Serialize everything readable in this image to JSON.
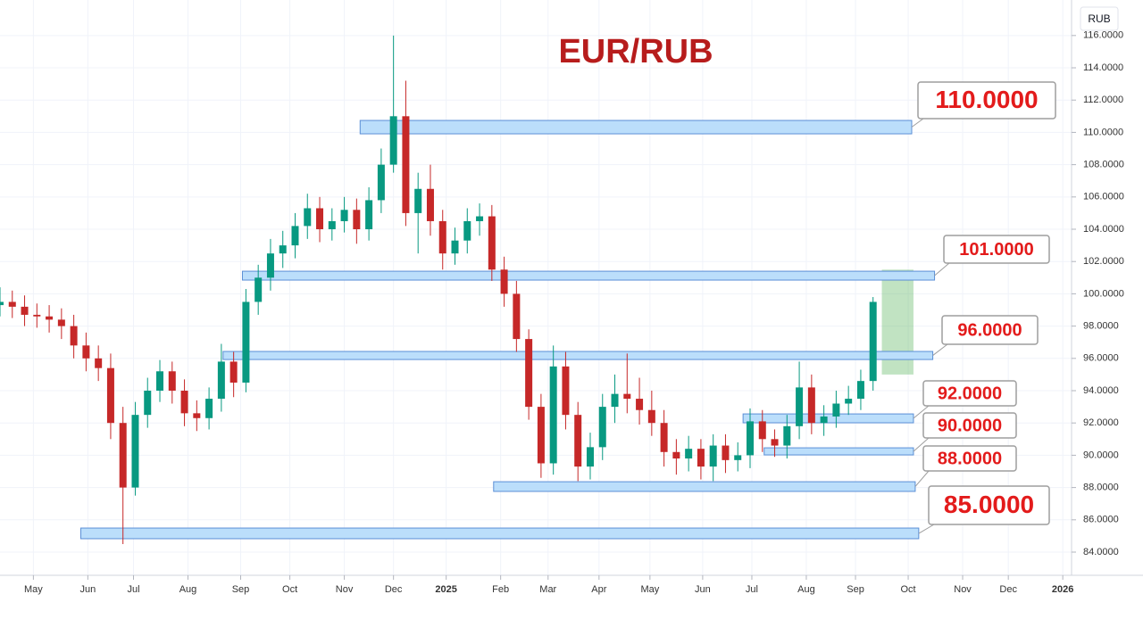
{
  "chart_data": {
    "type": "candlestick",
    "title": "EUR/RUB",
    "currency": "RUB",
    "up_color": "#089981",
    "down_color": "#c62828",
    "grid": true,
    "xlim": [
      0,
      610
    ],
    "ylim": [
      82.84,
      118.2
    ],
    "xticks": [
      {
        "value": 19,
        "label": "May"
      },
      {
        "value": 50,
        "label": "Jun"
      },
      {
        "value": 76,
        "label": "Jul"
      },
      {
        "value": 107,
        "label": "Aug"
      },
      {
        "value": 137,
        "label": "Sep"
      },
      {
        "value": 165,
        "label": "Oct"
      },
      {
        "value": 196,
        "label": "Nov"
      },
      {
        "value": 224,
        "label": "Dec"
      },
      {
        "value": 254,
        "label": "2025"
      },
      {
        "value": 285,
        "label": "Feb"
      },
      {
        "value": 312,
        "label": "Mar"
      },
      {
        "value": 341,
        "label": "Apr"
      },
      {
        "value": 370,
        "label": "May"
      },
      {
        "value": 400,
        "label": "Jun"
      },
      {
        "value": 428,
        "label": "Jul"
      },
      {
        "value": 459,
        "label": "Aug"
      },
      {
        "value": 487,
        "label": "Sep"
      },
      {
        "value": 517,
        "label": "Oct"
      },
      {
        "value": 548,
        "label": "Nov"
      },
      {
        "value": 574,
        "label": "Dec"
      },
      {
        "value": 605,
        "label": "2026"
      }
    ],
    "yticks": [
      {
        "value": 84,
        "label": "84.0000"
      },
      {
        "value": 86,
        "label": "86.0000"
      },
      {
        "value": 88,
        "label": "88.0000"
      },
      {
        "value": 90,
        "label": "90.0000"
      },
      {
        "value": 92,
        "label": "92.0000"
      },
      {
        "value": 94,
        "label": "94.0000"
      },
      {
        "value": 96,
        "label": "96.0000"
      },
      {
        "value": 98,
        "label": "98.0000"
      },
      {
        "value": 100,
        "label": "100.0000"
      },
      {
        "value": 102,
        "label": "102.0000"
      },
      {
        "value": 104,
        "label": "104.0000"
      },
      {
        "value": 106,
        "label": "106.0000"
      },
      {
        "value": 108,
        "label": "108.0000"
      },
      {
        "value": 110,
        "label": "110.0000"
      },
      {
        "value": 112,
        "label": "112.0000"
      },
      {
        "value": 114,
        "label": "114.0000"
      },
      {
        "value": 116,
        "label": "116.0000"
      }
    ],
    "x": [
      0,
      7,
      14,
      21,
      28,
      35,
      42,
      49,
      56,
      63,
      70,
      77,
      84,
      91,
      98,
      105,
      112,
      119,
      126,
      133,
      140,
      147,
      154,
      161,
      168,
      175,
      182,
      189,
      196,
      203,
      210,
      217,
      224,
      231,
      238,
      245,
      252,
      259,
      266,
      273,
      280,
      287,
      294,
      301,
      308,
      315,
      322,
      329,
      336,
      343,
      350,
      357,
      364,
      371,
      378,
      385,
      392,
      399,
      406,
      413,
      420,
      427,
      434,
      441,
      448,
      455,
      462,
      469,
      476,
      483,
      490,
      497
    ],
    "open": [
      99.3,
      99.5,
      99.2,
      98.7,
      98.6,
      98.4,
      98.0,
      96.8,
      96.0,
      95.4,
      92.0,
      88.0,
      92.5,
      94.0,
      95.2,
      94.0,
      92.6,
      92.3,
      93.5,
      95.8,
      94.5,
      99.5,
      101.0,
      102.5,
      103.0,
      104.2,
      105.3,
      104.0,
      104.5,
      105.2,
      104.0,
      105.8,
      108.0,
      111.0,
      105.0,
      106.5,
      104.5,
      102.5,
      103.3,
      104.5,
      104.8,
      101.5,
      100.0,
      97.2,
      93.0,
      89.5,
      95.5,
      92.5,
      89.3,
      90.5,
      93.0,
      93.8,
      93.5,
      92.8,
      92.0,
      90.2,
      89.8,
      90.4,
      89.3,
      90.6,
      89.7,
      90.0,
      92.1,
      91.0,
      90.6,
      91.8,
      94.2,
      92.0,
      92.4,
      93.2,
      93.5,
      94.6
    ],
    "high": [
      100.4,
      100.2,
      99.9,
      99.4,
      99.3,
      99.1,
      98.7,
      97.6,
      96.8,
      96.3,
      93.0,
      93.3,
      94.8,
      95.9,
      95.8,
      94.7,
      93.4,
      94.2,
      96.9,
      96.4,
      100.3,
      101.8,
      103.4,
      103.9,
      105.0,
      106.2,
      106.0,
      105.3,
      106.0,
      105.9,
      106.6,
      109.0,
      116.0,
      113.2,
      107.5,
      108.0,
      105.2,
      104.1,
      105.3,
      105.6,
      105.5,
      102.3,
      100.8,
      97.8,
      93.8,
      96.8,
      96.4,
      93.3,
      91.4,
      93.8,
      95.0,
      96.3,
      94.8,
      94.0,
      92.8,
      91.0,
      91.2,
      91.0,
      91.3,
      91.3,
      90.8,
      92.9,
      92.8,
      91.6,
      92.5,
      95.8,
      95.0,
      93.1,
      94.0,
      94.3,
      95.3,
      99.8
    ],
    "low": [
      98.6,
      98.5,
      98.0,
      97.9,
      97.6,
      97.2,
      96.0,
      95.2,
      94.6,
      91.0,
      84.5,
      87.5,
      91.7,
      93.3,
      93.2,
      91.8,
      91.5,
      91.6,
      92.7,
      93.6,
      93.9,
      98.7,
      100.2,
      101.6,
      102.2,
      103.4,
      103.2,
      103.3,
      103.8,
      103.1,
      103.3,
      105.0,
      107.5,
      104.2,
      102.5,
      103.6,
      101.5,
      101.8,
      102.5,
      103.6,
      100.8,
      99.2,
      96.4,
      92.2,
      88.6,
      88.8,
      91.6,
      88.4,
      88.5,
      89.7,
      92.0,
      92.6,
      91.9,
      91.2,
      89.3,
      88.8,
      89.0,
      88.5,
      88.4,
      88.9,
      89.0,
      89.2,
      90.2,
      89.9,
      89.8,
      91.0,
      91.3,
      91.2,
      91.7,
      92.5,
      92.8,
      94.0
    ],
    "close": [
      99.5,
      99.2,
      98.7,
      98.6,
      98.4,
      98.0,
      96.8,
      96.0,
      95.4,
      92.0,
      88.0,
      92.5,
      94.0,
      95.2,
      94.0,
      92.6,
      92.3,
      93.5,
      95.8,
      94.5,
      99.5,
      101.0,
      102.5,
      103.0,
      104.2,
      105.3,
      104.0,
      104.5,
      105.2,
      104.0,
      105.8,
      108.0,
      111.0,
      105.0,
      106.5,
      104.5,
      102.5,
      103.3,
      104.5,
      104.8,
      101.5,
      100.0,
      97.2,
      93.0,
      89.5,
      95.5,
      92.5,
      89.3,
      90.5,
      93.0,
      93.8,
      93.5,
      92.8,
      92.0,
      90.2,
      89.8,
      90.4,
      89.3,
      90.6,
      89.7,
      90.0,
      92.1,
      91.0,
      90.6,
      91.8,
      94.2,
      92.0,
      92.4,
      93.2,
      93.5,
      94.6,
      99.5
    ],
    "levels": [
      {
        "value": 110,
        "label": "110.0000",
        "low": 109.91,
        "high": 110.74,
        "start": 205,
        "end": 519
      },
      {
        "value": 101,
        "label": "101.0000",
        "low": 100.85,
        "high": 101.4,
        "start": 138,
        "end": 532
      },
      {
        "value": 96,
        "label": "96.0000",
        "low": 95.93,
        "high": 96.43,
        "start": 127,
        "end": 531
      },
      {
        "value": 92,
        "label": "92.0000",
        "low": 92.01,
        "high": 92.56,
        "start": 423,
        "end": 520
      },
      {
        "value": 90,
        "label": "90.0000",
        "low": 90.02,
        "high": 90.46,
        "start": 435,
        "end": 520
      },
      {
        "value": 88,
        "label": "88.0000",
        "low": 87.76,
        "high": 88.36,
        "start": 281,
        "end": 521
      },
      {
        "value": 85,
        "label": "85.0000",
        "low": 84.83,
        "high": 85.49,
        "start": 46,
        "end": 523
      }
    ],
    "target_zone": {
      "low": 95.0,
      "high": 101.5,
      "start": 502,
      "end": 520
    }
  }
}
